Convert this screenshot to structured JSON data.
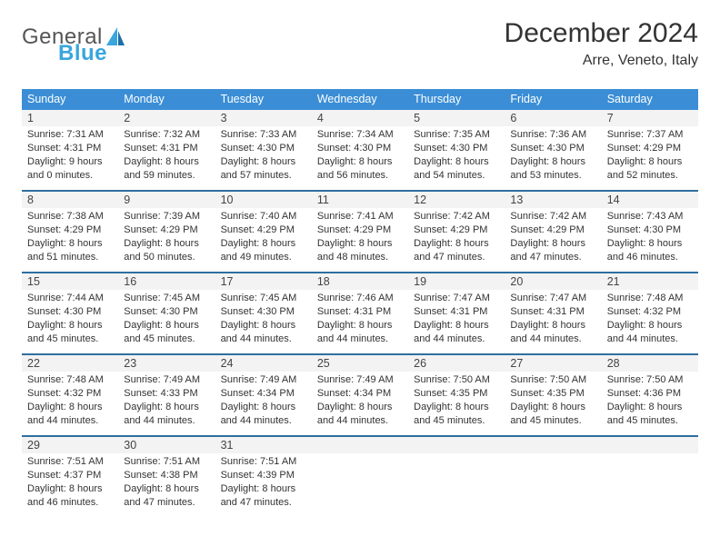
{
  "logo": {
    "word1": "General",
    "word2": "Blue"
  },
  "title": "December 2024",
  "location": "Arre, Veneto, Italy",
  "colors": {
    "header_blue": "#3b8ed6",
    "row_divider": "#2f6fa0",
    "cell_bg": "#f3f3f3",
    "logo_blue": "#3aa6dd",
    "text": "#222222"
  },
  "weekdays": [
    "Sunday",
    "Monday",
    "Tuesday",
    "Wednesday",
    "Thursday",
    "Friday",
    "Saturday"
  ],
  "weeks": [
    [
      {
        "n": "1",
        "sr": "Sunrise: 7:31 AM",
        "ss": "Sunset: 4:31 PM",
        "dl": "Daylight: 9 hours and 0 minutes."
      },
      {
        "n": "2",
        "sr": "Sunrise: 7:32 AM",
        "ss": "Sunset: 4:31 PM",
        "dl": "Daylight: 8 hours and 59 minutes."
      },
      {
        "n": "3",
        "sr": "Sunrise: 7:33 AM",
        "ss": "Sunset: 4:30 PM",
        "dl": "Daylight: 8 hours and 57 minutes."
      },
      {
        "n": "4",
        "sr": "Sunrise: 7:34 AM",
        "ss": "Sunset: 4:30 PM",
        "dl": "Daylight: 8 hours and 56 minutes."
      },
      {
        "n": "5",
        "sr": "Sunrise: 7:35 AM",
        "ss": "Sunset: 4:30 PM",
        "dl": "Daylight: 8 hours and 54 minutes."
      },
      {
        "n": "6",
        "sr": "Sunrise: 7:36 AM",
        "ss": "Sunset: 4:30 PM",
        "dl": "Daylight: 8 hours and 53 minutes."
      },
      {
        "n": "7",
        "sr": "Sunrise: 7:37 AM",
        "ss": "Sunset: 4:29 PM",
        "dl": "Daylight: 8 hours and 52 minutes."
      }
    ],
    [
      {
        "n": "8",
        "sr": "Sunrise: 7:38 AM",
        "ss": "Sunset: 4:29 PM",
        "dl": "Daylight: 8 hours and 51 minutes."
      },
      {
        "n": "9",
        "sr": "Sunrise: 7:39 AM",
        "ss": "Sunset: 4:29 PM",
        "dl": "Daylight: 8 hours and 50 minutes."
      },
      {
        "n": "10",
        "sr": "Sunrise: 7:40 AM",
        "ss": "Sunset: 4:29 PM",
        "dl": "Daylight: 8 hours and 49 minutes."
      },
      {
        "n": "11",
        "sr": "Sunrise: 7:41 AM",
        "ss": "Sunset: 4:29 PM",
        "dl": "Daylight: 8 hours and 48 minutes."
      },
      {
        "n": "12",
        "sr": "Sunrise: 7:42 AM",
        "ss": "Sunset: 4:29 PM",
        "dl": "Daylight: 8 hours and 47 minutes."
      },
      {
        "n": "13",
        "sr": "Sunrise: 7:42 AM",
        "ss": "Sunset: 4:29 PM",
        "dl": "Daylight: 8 hours and 47 minutes."
      },
      {
        "n": "14",
        "sr": "Sunrise: 7:43 AM",
        "ss": "Sunset: 4:30 PM",
        "dl": "Daylight: 8 hours and 46 minutes."
      }
    ],
    [
      {
        "n": "15",
        "sr": "Sunrise: 7:44 AM",
        "ss": "Sunset: 4:30 PM",
        "dl": "Daylight: 8 hours and 45 minutes."
      },
      {
        "n": "16",
        "sr": "Sunrise: 7:45 AM",
        "ss": "Sunset: 4:30 PM",
        "dl": "Daylight: 8 hours and 45 minutes."
      },
      {
        "n": "17",
        "sr": "Sunrise: 7:45 AM",
        "ss": "Sunset: 4:30 PM",
        "dl": "Daylight: 8 hours and 44 minutes."
      },
      {
        "n": "18",
        "sr": "Sunrise: 7:46 AM",
        "ss": "Sunset: 4:31 PM",
        "dl": "Daylight: 8 hours and 44 minutes."
      },
      {
        "n": "19",
        "sr": "Sunrise: 7:47 AM",
        "ss": "Sunset: 4:31 PM",
        "dl": "Daylight: 8 hours and 44 minutes."
      },
      {
        "n": "20",
        "sr": "Sunrise: 7:47 AM",
        "ss": "Sunset: 4:31 PM",
        "dl": "Daylight: 8 hours and 44 minutes."
      },
      {
        "n": "21",
        "sr": "Sunrise: 7:48 AM",
        "ss": "Sunset: 4:32 PM",
        "dl": "Daylight: 8 hours and 44 minutes."
      }
    ],
    [
      {
        "n": "22",
        "sr": "Sunrise: 7:48 AM",
        "ss": "Sunset: 4:32 PM",
        "dl": "Daylight: 8 hours and 44 minutes."
      },
      {
        "n": "23",
        "sr": "Sunrise: 7:49 AM",
        "ss": "Sunset: 4:33 PM",
        "dl": "Daylight: 8 hours and 44 minutes."
      },
      {
        "n": "24",
        "sr": "Sunrise: 7:49 AM",
        "ss": "Sunset: 4:34 PM",
        "dl": "Daylight: 8 hours and 44 minutes."
      },
      {
        "n": "25",
        "sr": "Sunrise: 7:49 AM",
        "ss": "Sunset: 4:34 PM",
        "dl": "Daylight: 8 hours and 44 minutes."
      },
      {
        "n": "26",
        "sr": "Sunrise: 7:50 AM",
        "ss": "Sunset: 4:35 PM",
        "dl": "Daylight: 8 hours and 45 minutes."
      },
      {
        "n": "27",
        "sr": "Sunrise: 7:50 AM",
        "ss": "Sunset: 4:35 PM",
        "dl": "Daylight: 8 hours and 45 minutes."
      },
      {
        "n": "28",
        "sr": "Sunrise: 7:50 AM",
        "ss": "Sunset: 4:36 PM",
        "dl": "Daylight: 8 hours and 45 minutes."
      }
    ],
    [
      {
        "n": "29",
        "sr": "Sunrise: 7:51 AM",
        "ss": "Sunset: 4:37 PM",
        "dl": "Daylight: 8 hours and 46 minutes."
      },
      {
        "n": "30",
        "sr": "Sunrise: 7:51 AM",
        "ss": "Sunset: 4:38 PM",
        "dl": "Daylight: 8 hours and 47 minutes."
      },
      {
        "n": "31",
        "sr": "Sunrise: 7:51 AM",
        "ss": "Sunset: 4:39 PM",
        "dl": "Daylight: 8 hours and 47 minutes."
      },
      null,
      null,
      null,
      null
    ]
  ]
}
